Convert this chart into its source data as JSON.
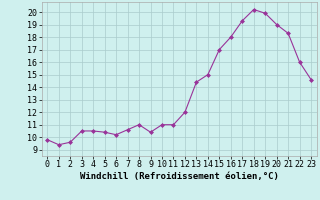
{
  "x": [
    0,
    1,
    2,
    3,
    4,
    5,
    6,
    7,
    8,
    9,
    10,
    11,
    12,
    13,
    14,
    15,
    16,
    17,
    18,
    19,
    20,
    21,
    22,
    23
  ],
  "y": [
    9.8,
    9.4,
    9.6,
    10.5,
    10.5,
    10.4,
    10.2,
    10.6,
    11.0,
    10.4,
    11.0,
    11.0,
    12.0,
    14.4,
    15.0,
    17.0,
    18.0,
    19.3,
    20.2,
    19.9,
    19.0,
    18.3,
    16.0,
    14.6
  ],
  "line_color": "#993399",
  "marker": "D",
  "marker_size": 2,
  "bg_color": "#cff0ee",
  "grid_color": "#aacccc",
  "xlabel": "Windchill (Refroidissement éolien,°C)",
  "xlabel_fontsize": 6.5,
  "tick_fontsize": 6.0,
  "ylim": [
    8.5,
    20.8
  ],
  "yticks": [
    9,
    10,
    11,
    12,
    13,
    14,
    15,
    16,
    17,
    18,
    19,
    20
  ],
  "xlim": [
    -0.5,
    23.5
  ],
  "xticks": [
    0,
    1,
    2,
    3,
    4,
    5,
    6,
    7,
    8,
    9,
    10,
    11,
    12,
    13,
    14,
    15,
    16,
    17,
    18,
    19,
    20,
    21,
    22,
    23
  ]
}
